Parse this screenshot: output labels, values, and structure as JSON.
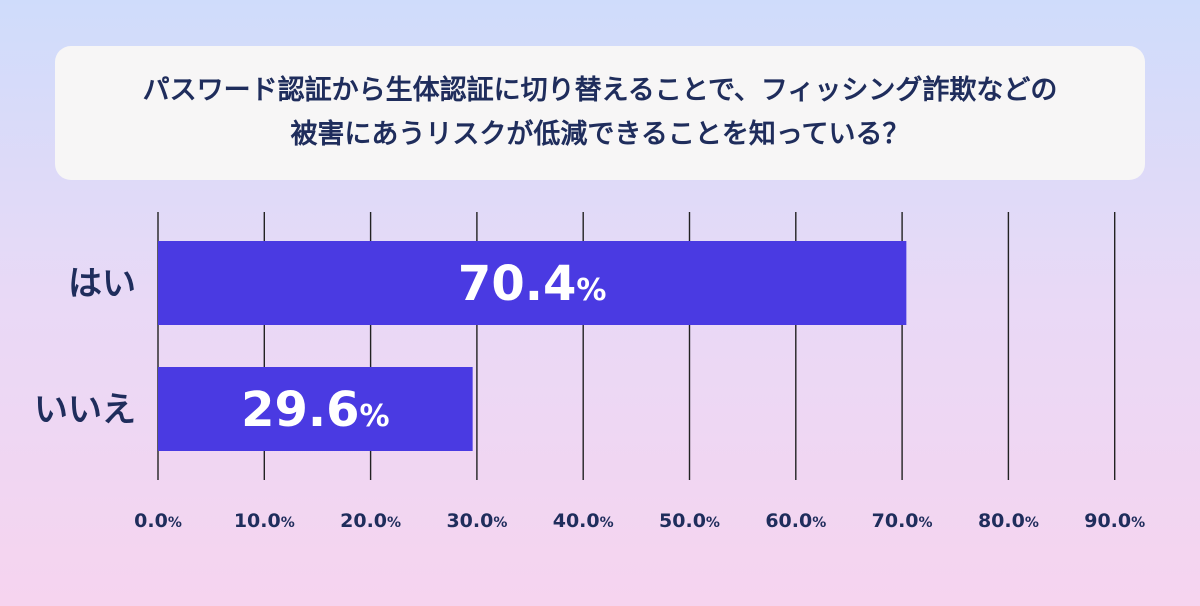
{
  "title": {
    "line1": "パスワード認証から生体認証に切り替えることで、フィッシング詐欺などの",
    "line2": "被害にあうリスクが低減できることを知っている？"
  },
  "colors": {
    "bar": "#4a3ae2",
    "text": "#1f2d5c",
    "grid": "#222222",
    "bar_label": "#ffffff"
  },
  "chart_data": {
    "type": "bar",
    "orientation": "horizontal",
    "categories": [
      "はい",
      "いいえ"
    ],
    "values": [
      70.4,
      29.6
    ],
    "data_labels": [
      "70.4",
      "29.6"
    ],
    "unit": "%",
    "xlim": [
      0,
      90
    ],
    "ticks": [
      {
        "value": 0,
        "label": "0.0"
      },
      {
        "value": 10,
        "label": "10.0"
      },
      {
        "value": 20,
        "label": "20.0"
      },
      {
        "value": 30,
        "label": "30.0"
      },
      {
        "value": 40,
        "label": "40.0"
      },
      {
        "value": 50,
        "label": "50.0"
      },
      {
        "value": 60,
        "label": "60.0"
      },
      {
        "value": 70,
        "label": "70.0"
      },
      {
        "value": 80,
        "label": "80.0"
      },
      {
        "value": 90,
        "label": "90.0"
      }
    ],
    "grid": true,
    "legend": "none"
  }
}
